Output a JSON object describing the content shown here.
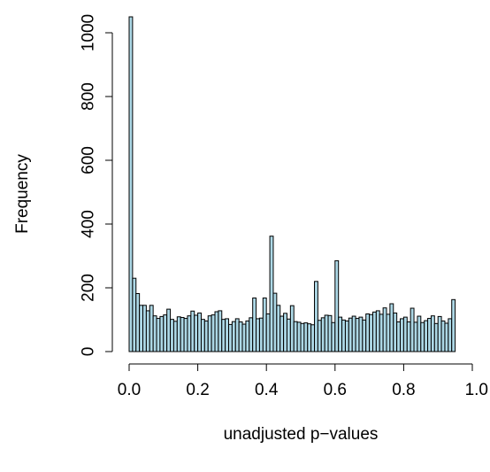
{
  "chart_data": {
    "type": "bar",
    "title": "",
    "xlabel": "unadjusted p−values",
    "ylabel": "Frequency",
    "xlim": [
      0,
      1
    ],
    "ylim": [
      0,
      1050
    ],
    "bin_width": 0.01,
    "x_ticks": [
      0.0,
      0.2,
      0.4,
      0.6,
      0.8,
      1.0
    ],
    "x_tick_labels": [
      "0.0",
      "0.2",
      "0.4",
      "0.6",
      "0.8",
      "1.0"
    ],
    "y_ticks": [
      0,
      200,
      400,
      600,
      800,
      1000
    ],
    "y_tick_labels": [
      "0",
      "200",
      "400",
      "600",
      "800",
      "1000"
    ],
    "grid": false,
    "bar_color": "#ADD8E6",
    "values": [
      1050,
      230,
      182,
      145,
      145,
      128,
      145,
      112,
      104,
      110,
      115,
      133,
      101,
      95,
      109,
      107,
      104,
      112,
      127,
      114,
      121,
      101,
      96,
      112,
      115,
      125,
      128,
      101,
      103,
      85,
      94,
      103,
      93,
      86,
      96,
      106,
      168,
      103,
      105,
      168,
      118,
      362,
      183,
      145,
      111,
      120,
      102,
      144,
      94,
      92,
      88,
      90,
      87,
      84,
      220,
      98,
      106,
      114,
      113,
      91,
      285,
      108,
      99,
      96,
      105,
      111,
      104,
      108,
      99,
      118,
      116,
      124,
      128,
      117,
      137,
      117,
      150,
      121,
      93,
      103,
      108,
      93,
      136,
      92,
      111,
      91,
      97,
      104,
      112,
      88,
      110,
      96,
      89,
      103,
      163
    ]
  }
}
